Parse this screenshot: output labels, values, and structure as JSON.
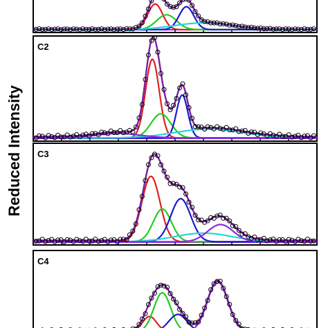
{
  "chart_data": {
    "type": "line",
    "ylabel": "Reduced Intensity",
    "xlabel": "",
    "x_range": [
      0,
      100
    ],
    "y_range": [
      0,
      1
    ],
    "grid": false,
    "legend": "none",
    "colors": {
      "data": "#000000",
      "envelope": "#7a1fa2",
      "red": "#e02020",
      "green": "#22cc22",
      "blue": "#1a1acc",
      "cyan": "#22d6d6",
      "baseline": "#8a2be2"
    },
    "panels": [
      {
        "label": "",
        "ymax": 1.0,
        "components": [
          {
            "color": "red",
            "center": 43,
            "amplitude": 0.95,
            "width": 2.6
          },
          {
            "color": "green",
            "center": 47,
            "amplitude": 0.55,
            "width": 3.5
          },
          {
            "color": "blue",
            "center": 54,
            "amplitude": 0.85,
            "width": 2.6
          },
          {
            "color": "cyan",
            "center": 60,
            "amplitude": 0.25,
            "width": 10
          }
        ]
      },
      {
        "label": "C2",
        "ymax": 1.0,
        "components": [
          {
            "color": "red",
            "center": 42,
            "amplitude": 0.88,
            "width": 2.4
          },
          {
            "color": "green",
            "center": 45,
            "amplitude": 0.27,
            "width": 3.5
          },
          {
            "color": "blue",
            "center": 52.5,
            "amplitude": 0.48,
            "width": 2.0
          },
          {
            "color": "cyan",
            "center": 62,
            "amplitude": 0.1,
            "width": 12
          },
          {
            "color": "baseline",
            "center": 30,
            "amplitude": 0.05,
            "width": 8
          }
        ]
      },
      {
        "label": "C3",
        "ymax": 1.0,
        "components": [
          {
            "color": "red",
            "center": 41.5,
            "amplitude": 0.76,
            "width": 3.2
          },
          {
            "color": "green",
            "center": 45.5,
            "amplitude": 0.38,
            "width": 3.2
          },
          {
            "color": "blue",
            "center": 52,
            "amplitude": 0.5,
            "width": 3.5
          },
          {
            "color": "cyan",
            "center": 60,
            "amplitude": 0.1,
            "width": 10
          },
          {
            "color": "baseline",
            "center": 66,
            "amplitude": 0.2,
            "width": 4.5
          }
        ]
      },
      {
        "label": "C4",
        "ymax": 1.0,
        "components": [
          {
            "color": "red",
            "center": 41,
            "amplitude": 0.22,
            "width": 2.5
          },
          {
            "color": "green",
            "center": 45.5,
            "amplitude": 0.56,
            "width": 3.0
          },
          {
            "color": "blue",
            "center": 51,
            "amplitude": 0.25,
            "width": 3.2
          },
          {
            "color": "baseline",
            "center": 65,
            "amplitude": 0.72,
            "width": 3.6
          }
        ]
      }
    ]
  }
}
